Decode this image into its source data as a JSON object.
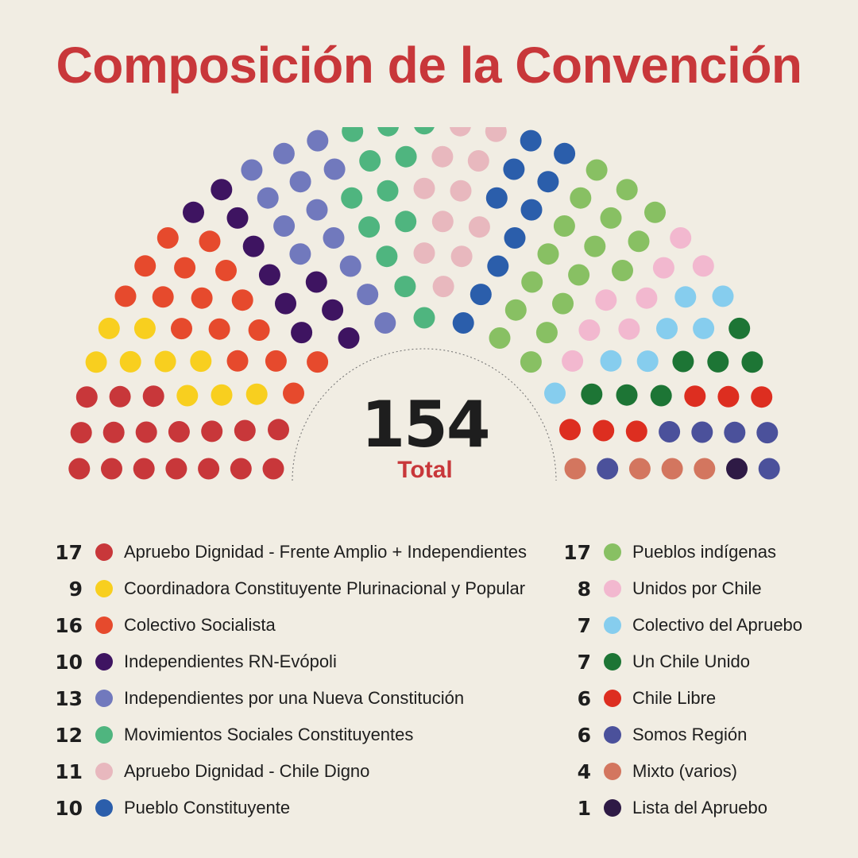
{
  "title": "Composición de la Convención",
  "total": {
    "value": "154",
    "label": "Total"
  },
  "chart_data": {
    "type": "parliament",
    "total_seats": 154,
    "series": [
      {
        "name": "Apruebo Dignidad - Frente Amplio + Independientes",
        "value": 17,
        "color": "#c8373a"
      },
      {
        "name": "Coordinadora Constituyente Plurinacional y Popular",
        "value": 9,
        "color": "#f8cf1f"
      },
      {
        "name": "Colectivo Socialista",
        "value": 16,
        "color": "#e64a2d"
      },
      {
        "name": "Independientes RN-Evópoli",
        "value": 10,
        "color": "#3e1461"
      },
      {
        "name": "Independientes por una Nueva Constitución",
        "value": 13,
        "color": "#7179bd"
      },
      {
        "name": "Movimientos Sociales Constituyentes",
        "value": 12,
        "color": "#4fb57f"
      },
      {
        "name": "Apruebo Dignidad - Chile Digno",
        "value": 11,
        "color": "#e8b8be"
      },
      {
        "name": "Pueblo Constituyente",
        "value": 10,
        "color": "#2b5eab"
      },
      {
        "name": "Pueblos indígenas",
        "value": 17,
        "color": "#88c063"
      },
      {
        "name": "Unidos por Chile",
        "value": 8,
        "color": "#f2b8cf"
      },
      {
        "name": "Colectivo del Apruebo",
        "value": 7,
        "color": "#86cdee"
      },
      {
        "name": "Un Chile Unido",
        "value": 7,
        "color": "#1d7535"
      },
      {
        "name": "Chile Libre",
        "value": 6,
        "color": "#dd2e20"
      },
      {
        "name": "Somos Región",
        "value": 6,
        "color": "#4b519b"
      },
      {
        "name": "Mixto (varios)",
        "value": 4,
        "color": "#d3765f"
      },
      {
        "name": "Lista del Apruebo",
        "value": 1,
        "color": "#2e1a45"
      }
    ]
  },
  "legend": {
    "left": [
      {
        "count": "17",
        "label": "Apruebo Dignidad - Frente Amplio + Independientes",
        "color": "#c8373a"
      },
      {
        "count": "9",
        "label": "Coordinadora Constituyente Plurinacional y Popular",
        "color": "#f8cf1f"
      },
      {
        "count": "16",
        "label": "Colectivo Socialista",
        "color": "#e64a2d"
      },
      {
        "count": "10",
        "label": "Independientes RN-Evópoli",
        "color": "#3e1461"
      },
      {
        "count": "13",
        "label": "Independientes por una Nueva Constitución",
        "color": "#7179bd"
      },
      {
        "count": "12",
        "label": "Movimientos Sociales Constituyentes",
        "color": "#4fb57f"
      },
      {
        "count": "11",
        "label": "Apruebo Dignidad - Chile Digno",
        "color": "#e8b8be"
      },
      {
        "count": "10",
        "label": "Pueblo Constituyente",
        "color": "#2b5eab"
      }
    ],
    "right": [
      {
        "count": "17",
        "label": "Pueblos indígenas",
        "color": "#88c063"
      },
      {
        "count": "8",
        "label": "Unidos por Chile",
        "color": "#f2b8cf"
      },
      {
        "count": "7",
        "label": "Colectivo del Apruebo",
        "color": "#86cdee"
      },
      {
        "count": "7",
        "label": "Un Chile Unido",
        "color": "#1d7535"
      },
      {
        "count": "6",
        "label": "Chile Libre",
        "color": "#dd2e20"
      },
      {
        "count": "6",
        "label": "Somos Región",
        "color": "#4b519b"
      },
      {
        "count": "4",
        "label": "Mixto (varios)",
        "color": "#d3765f"
      },
      {
        "count": "1",
        "label": "Lista del Apruebo",
        "color": "#2e1a45"
      }
    ]
  }
}
